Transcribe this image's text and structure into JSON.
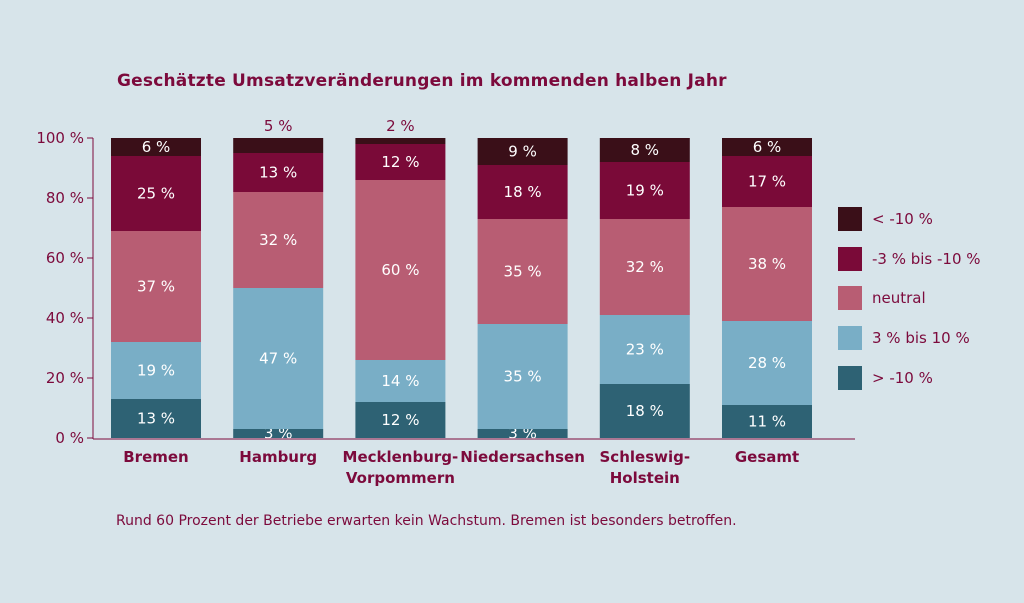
{
  "title": "Geschätzte Umsatzveränderungen im kommenden halben Jahr",
  "caption": "Rund 60 Prozent der Betriebe erwarten kein Wachstum. Bremen ist besonders betroffen.",
  "chart_data": {
    "type": "bar",
    "stacked": true,
    "title": "Geschätzte Umsatzveränderungen im kommenden halben Jahr",
    "xlabel": "",
    "ylabel": "",
    "ylim": [
      0,
      100
    ],
    "y_ticks": [
      "0 %",
      "20 %",
      "40 %",
      "60 %",
      "80 %",
      "100 %"
    ],
    "grid": false,
    "legend_position": "right",
    "categories": [
      [
        "Bremen"
      ],
      [
        "Hamburg"
      ],
      [
        "Mecklenburg-",
        "Vorpommern"
      ],
      [
        "Niedersachsen"
      ],
      [
        "Schleswig-",
        "Holstein"
      ],
      [
        "Gesamt"
      ]
    ],
    "series": [
      {
        "name": "> -10 %",
        "color": "#2e6274",
        "values": [
          13,
          3,
          12,
          3,
          18,
          11
        ],
        "labels": [
          "13 %",
          "3 %",
          "12 %",
          "3 %",
          "18 %",
          "11 %"
        ]
      },
      {
        "name": "3 % bis 10 %",
        "color": "#79aec6",
        "values": [
          19,
          47,
          14,
          35,
          23,
          28
        ],
        "labels": [
          "19 %",
          "47 %",
          "14 %",
          "35 %",
          "23 %",
          "28 %"
        ]
      },
      {
        "name": "neutral",
        "color": "#b85d73",
        "values": [
          37,
          32,
          60,
          35,
          32,
          38
        ],
        "labels": [
          "37 %",
          "32 %",
          "60 %",
          "35 %",
          "32 %",
          "38 %"
        ]
      },
      {
        "name": "-3 % bis -10 %",
        "color": "#7a0a38",
        "values": [
          25,
          13,
          12,
          18,
          19,
          17
        ],
        "labels": [
          "25 %",
          "13 %",
          "12 %",
          "18 %",
          "19 %",
          "17 %"
        ]
      },
      {
        "name": "< -10 %",
        "color": "#3a0f18",
        "values": [
          6,
          5,
          2,
          9,
          8,
          6
        ],
        "labels": [
          "6 %",
          "5 %",
          "2 %",
          "9 %",
          "8 %",
          "6 %"
        ]
      }
    ],
    "legend_order": [
      "< -10 %",
      "-3 % bis -10 %",
      "neutral",
      "3 % bis 10 %",
      "> -10 %"
    ]
  }
}
